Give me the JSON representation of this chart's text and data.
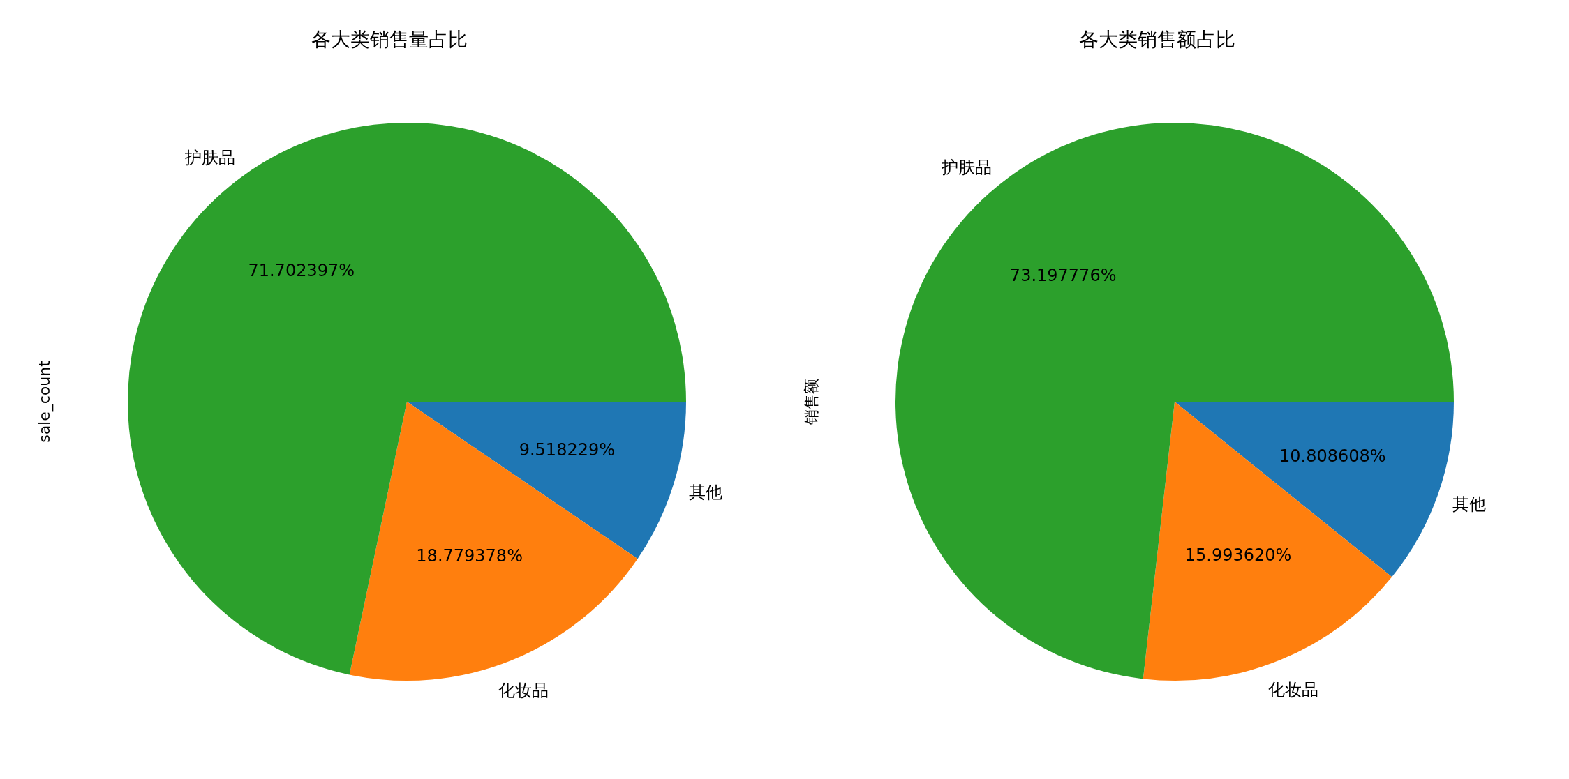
{
  "chart_data": [
    {
      "type": "pie",
      "title": "各大类销售量占比",
      "ylabel": "sale_count",
      "categories": [
        "其他",
        "化妆品",
        "护肤品"
      ],
      "values": [
        9.518229,
        18.779378,
        71.702397
      ],
      "value_labels": [
        "9.518229%",
        "18.779378%",
        "71.702397%"
      ],
      "colors": [
        "#1f77b4",
        "#ff7f0e",
        "#2ca02c"
      ]
    },
    {
      "type": "pie",
      "title": "各大类销售额占比",
      "ylabel": "销售额",
      "categories": [
        "其他",
        "化妆品",
        "护肤品"
      ],
      "values": [
        10.808608,
        15.99362,
        73.197776
      ],
      "value_labels": [
        "10.808608%",
        "15.993620%",
        "73.197776%"
      ],
      "colors": [
        "#1f77b4",
        "#ff7f0e",
        "#2ca02c"
      ]
    }
  ]
}
